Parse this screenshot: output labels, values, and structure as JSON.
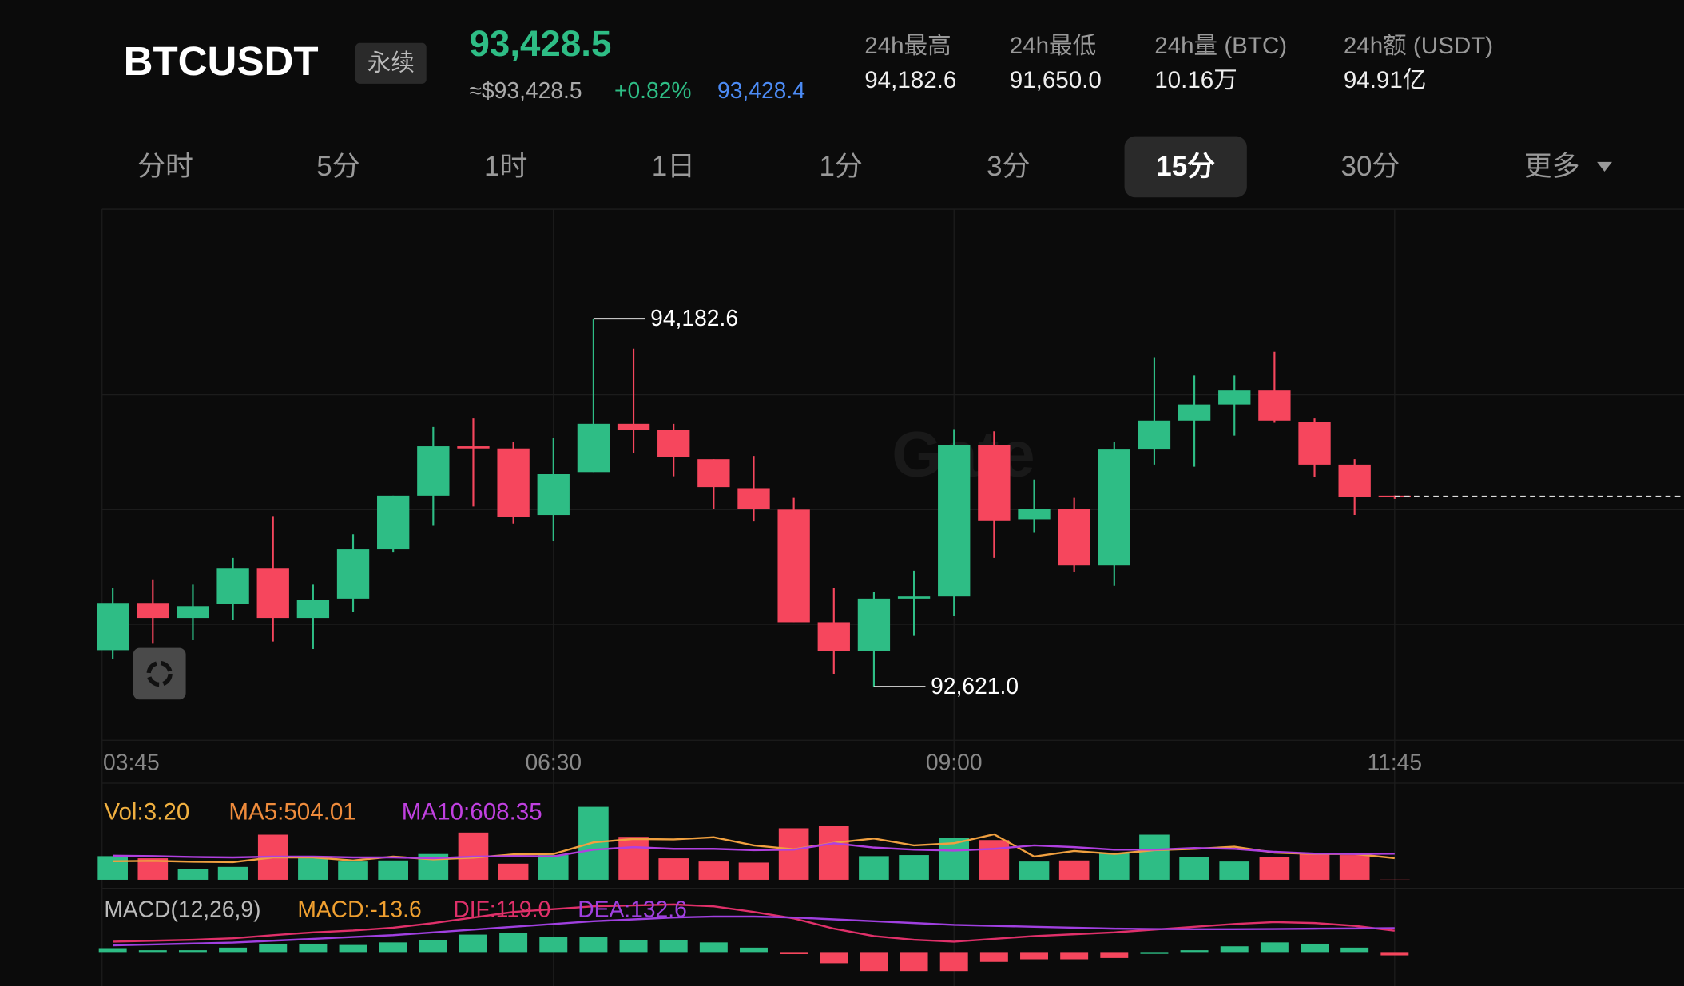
{
  "header": {
    "symbol": "BTCUSDT",
    "badge": "永续",
    "price": "93,428.5",
    "usd_price": "≈$93,428.5",
    "change": "+0.82%",
    "mark_price": "93,428.4",
    "stats": [
      {
        "label": "24h最高",
        "value": "94,182.6"
      },
      {
        "label": "24h最低",
        "value": "91,650.0"
      },
      {
        "label": "24h量 (BTC)",
        "value": "10.16万"
      },
      {
        "label": "24h额 (USDT)",
        "value": "94.91亿"
      }
    ]
  },
  "tabs": [
    {
      "label": "分时"
    },
    {
      "label": "5分"
    },
    {
      "label": "1时"
    },
    {
      "label": "1日"
    },
    {
      "label": "1分"
    },
    {
      "label": "3分"
    },
    {
      "label": "15分",
      "active": true
    },
    {
      "label": "30分"
    },
    {
      "label": "更多"
    }
  ],
  "chart": {
    "type": "candlestick",
    "watermark": "Gate",
    "high_label": "94,182.6",
    "low_label": "92,621.0",
    "categories": [
      "03:45",
      null,
      null,
      null,
      null,
      null,
      null,
      null,
      null,
      null,
      null,
      "06:30",
      null,
      null,
      null,
      null,
      null,
      null,
      null,
      null,
      null,
      "09:00",
      null,
      null,
      null,
      null,
      null,
      null,
      null,
      null,
      null,
      null,
      "11:45"
    ],
    "candles": [
      [
        92775.7,
        93039.8,
        92739.3,
        92976.1
      ],
      [
        92976.1,
        93076.2,
        92803.0,
        92912.3
      ],
      [
        92912.3,
        93053.5,
        92821.3,
        92962.4
      ],
      [
        92971.5,
        93167.3,
        92903.2,
        93121.8
      ],
      [
        93121.8,
        93344.8,
        92812.1,
        92912.3
      ],
      [
        92912.3,
        93053.5,
        92780.3,
        92989.7
      ],
      [
        92994.3,
        93267.4,
        92939.6,
        93203.7
      ],
      [
        93203.7,
        93431.4,
        93190.0,
        93431.4
      ],
      [
        93431.4,
        93722.7,
        93303.9,
        93640.8
      ],
      [
        93640.8,
        93759.2,
        93385.8,
        93631.7
      ],
      [
        93631.7,
        93659.0,
        93313.0,
        93340.3
      ],
      [
        93349.4,
        93677.2,
        93240.1,
        93522.4
      ],
      [
        93531.5,
        94182.6,
        93531.5,
        93736.4
      ],
      [
        93736.4,
        94055.1,
        93613.5,
        93709.1
      ],
      [
        93709.1,
        93736.4,
        93513.3,
        93595.3
      ],
      [
        93586.2,
        93586.2,
        93376.7,
        93467.8
      ],
      [
        93463.2,
        93599.8,
        93322.1,
        93376.7
      ],
      [
        93372.2,
        93422.2,
        92894.1,
        92894.1
      ],
      [
        92894.1,
        93039.8,
        92675.6,
        92771.2
      ],
      [
        92771.2,
        93021.6,
        92621.0,
        92994.3
      ],
      [
        92994.3,
        93112.7,
        92839.5,
        93003.4
      ],
      [
        93003.4,
        93713.6,
        92921.4,
        93645.3
      ],
      [
        93645.3,
        93704.5,
        93167.3,
        93326.6
      ],
      [
        93331.2,
        93499.6,
        93276.6,
        93376.7
      ],
      [
        93376.7,
        93422.2,
        93108.1,
        93135.4
      ],
      [
        93135.4,
        93659.0,
        93048.9,
        93627.1
      ],
      [
        93627.1,
        94018.7,
        93563.4,
        93750.1
      ],
      [
        93750.1,
        93941.3,
        93554.3,
        93818.4
      ],
      [
        93818.4,
        93941.3,
        93686.3,
        93877.5
      ],
      [
        93877.5,
        94041.5,
        93741.0,
        93750.1
      ],
      [
        93745.5,
        93759.2,
        93508.8,
        93563.4
      ],
      [
        93563.4,
        93586.2,
        93349.4,
        93426.8
      ],
      [
        93431.4,
        93432.0,
        93417.7,
        93428.5
      ]
    ],
    "volume": {
      "labels": [
        "Vol:3.20",
        "MA5:504.01",
        "MA10:608.35"
      ],
      "values": [
        550,
        500,
        250,
        300,
        1050,
        500,
        425,
        450,
        600,
        1100,
        375,
        575,
        1700,
        1000,
        500,
        425,
        400,
        1200,
        1250,
        550,
        575,
        975,
        925,
        425,
        450,
        625,
        1050,
        525,
        425,
        525,
        600,
        575,
        3.2
      ],
      "ma5": [
        430,
        440,
        420,
        410,
        520,
        520,
        450,
        540,
        475,
        515,
        590,
        600,
        870,
        950,
        940,
        990,
        800,
        710,
        860,
        960,
        800,
        850,
        1060,
        540,
        670,
        600,
        690,
        720,
        770,
        630,
        600,
        600,
        504.01
      ],
      "ma10": [
        560,
        550,
        530,
        520,
        540,
        540,
        520,
        520,
        500,
        540,
        550,
        545,
        700,
        760,
        720,
        720,
        690,
        700,
        850,
        750,
        700,
        680,
        720,
        800,
        760,
        700,
        700,
        740,
        720,
        650,
        610,
        600,
        608.35
      ]
    },
    "macd": {
      "labels": [
        "MACD(12,26,9)",
        "MACD:-13.6",
        "DIF:119.0",
        "DEA:132.6"
      ],
      "hist": [
        21,
        14,
        14,
        28,
        49,
        49,
        42,
        56,
        70,
        98,
        105,
        84,
        84,
        70,
        70,
        56,
        28,
        -7,
        -56,
        -98,
        -98,
        -98,
        -49,
        -35,
        -35,
        -28,
        0,
        14,
        35,
        56,
        49,
        28,
        -13.6
      ],
      "dif": [
        60,
        65,
        70,
        78,
        95,
        110,
        120,
        135,
        160,
        190,
        220,
        235,
        250,
        255,
        260,
        250,
        220,
        185,
        130,
        90,
        70,
        60,
        75,
        90,
        100,
        110,
        125,
        140,
        155,
        165,
        160,
        145,
        119.0
      ],
      "dea": [
        40,
        45,
        50,
        55,
        65,
        75,
        85,
        95,
        110,
        125,
        140,
        155,
        170,
        180,
        190,
        195,
        195,
        190,
        180,
        170,
        160,
        150,
        145,
        140,
        135,
        130,
        128,
        127,
        127,
        128,
        130,
        131,
        132.6
      ]
    }
  }
}
